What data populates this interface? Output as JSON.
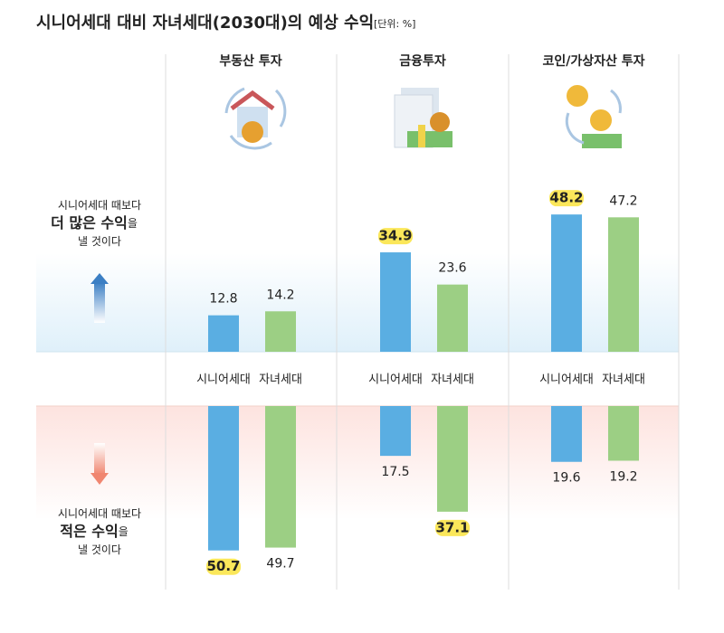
{
  "chart_data": {
    "type": "bar",
    "title": "시니어세대 대비 자녀세대(2030대)의 예상 수익",
    "unit": "[단위: %]",
    "categories": [
      "부동산 투자",
      "금융투자",
      "코인/가상자산 투자"
    ],
    "series": [
      {
        "name": "시니어세대",
        "color": "#5aaee2"
      },
      {
        "name": "자녀세대",
        "color": "#9ccf84"
      }
    ],
    "rows": [
      {
        "label": [
          "시니어세대 때보다",
          "더 많은 수익",
          "을",
          "낼 것이다"
        ],
        "direction": "up",
        "values": [
          [
            12.8,
            14.2
          ],
          [
            34.9,
            23.6
          ],
          [
            48.2,
            47.2
          ]
        ]
      },
      {
        "label": [
          "시니어세대 때보다",
          "적은 수익",
          "을",
          "낼 것이다"
        ],
        "direction": "down",
        "values": [
          [
            50.7,
            49.7
          ],
          [
            17.5,
            37.1
          ],
          [
            19.6,
            19.2
          ]
        ]
      }
    ]
  }
}
